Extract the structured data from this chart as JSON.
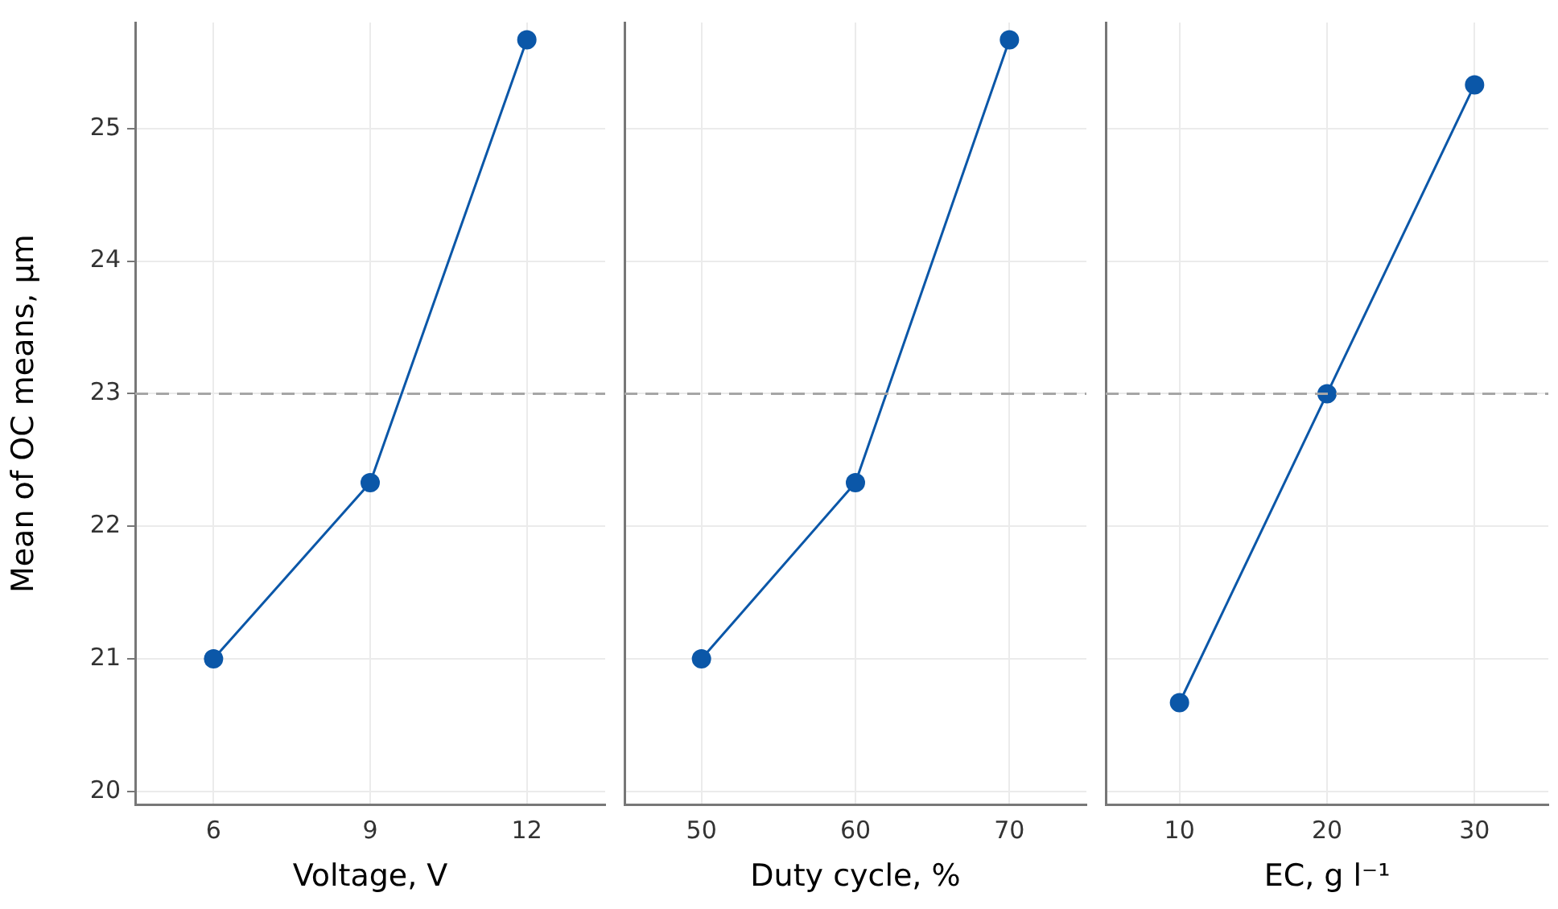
{
  "chart_data": [
    {
      "type": "line",
      "ylabel": "Mean of OC means, µm",
      "xlabel": "Voltage, V",
      "categories": [
        "6",
        "9",
        "12"
      ],
      "values": [
        21.0,
        22.33,
        25.67
      ],
      "color": "#0b57a8",
      "marker": "circle",
      "ylim": [
        19.9,
        25.8
      ],
      "yticks": [
        20,
        21,
        22,
        23,
        24,
        25
      ],
      "grid": true,
      "ref_lines": [
        {
          "axis": "y",
          "value": 23,
          "color": "#a6a6a6",
          "line_style": "dashed"
        }
      ]
    },
    {
      "type": "line",
      "xlabel": "Duty cycle, %",
      "categories": [
        "50",
        "60",
        "70"
      ],
      "values": [
        21.0,
        22.33,
        25.67
      ],
      "color": "#0b57a8",
      "marker": "circle",
      "ylim": [
        19.9,
        25.8
      ],
      "yticks": [
        20,
        21,
        22,
        23,
        24,
        25
      ],
      "grid": true,
      "tick_labels": "x",
      "ref_lines": [
        {
          "axis": "y",
          "value": 23,
          "color": "#a6a6a6",
          "line_style": "dashed"
        }
      ]
    },
    {
      "type": "line",
      "xlabel": "EC, g l⁻¹",
      "categories": [
        "10",
        "20",
        "30"
      ],
      "values": [
        20.67,
        23.0,
        25.33
      ],
      "color": "#0b57a8",
      "marker": "circle",
      "ylim": [
        19.9,
        25.8
      ],
      "yticks": [
        20,
        21,
        22,
        23,
        24,
        25
      ],
      "grid": true,
      "tick_labels": "x",
      "ref_lines": [
        {
          "axis": "y",
          "value": 23,
          "color": "#a6a6a6",
          "line_style": "dashed"
        }
      ]
    }
  ]
}
